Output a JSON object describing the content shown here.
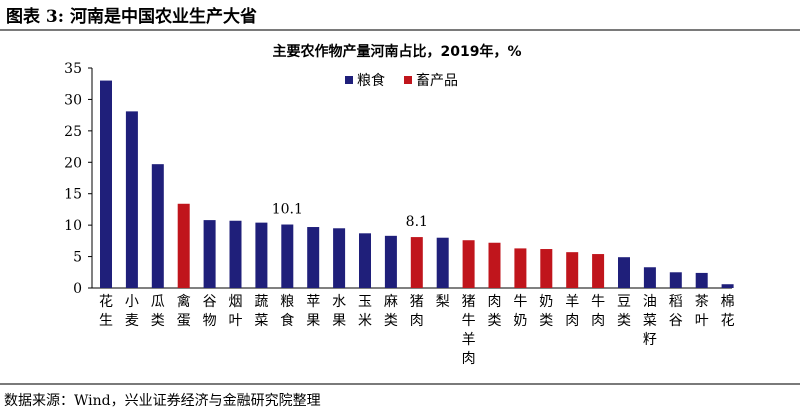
{
  "figure": {
    "title": "图表 3:  河南是中国农业生产大省",
    "source": "数据来源：Wind，兴业证券经济与金融研究院整理"
  },
  "chart_data": {
    "type": "bar",
    "title": "主要农作物产量河南占比，2019年，%",
    "ylim": [
      0,
      35
    ],
    "yticks": [
      0,
      5,
      10,
      15,
      20,
      25,
      30,
      35
    ],
    "grid": false,
    "legend_position": "top",
    "series": [
      {
        "name": "粮食",
        "color": "#1f1f7a"
      },
      {
        "name": "畜产品",
        "color": "#c0151c"
      }
    ],
    "categories": [
      "花生",
      "小麦",
      "瓜类",
      "禽蛋",
      "谷物",
      "烟叶",
      "蔬菜",
      "粮食",
      "苹果",
      "水果",
      "玉米",
      "麻类",
      "猪肉",
      "梨",
      "猪牛羊肉",
      "肉类",
      "牛奶",
      "奶类",
      "羊肉",
      "牛肉",
      "豆类",
      "油菜籽",
      "稻谷",
      "茶叶",
      "棉花"
    ],
    "values": [
      33.0,
      28.1,
      19.7,
      13.4,
      10.8,
      10.7,
      10.4,
      10.1,
      9.7,
      9.5,
      8.7,
      8.3,
      8.1,
      8.0,
      7.6,
      7.2,
      6.3,
      6.2,
      5.7,
      5.4,
      4.9,
      3.3,
      2.5,
      2.4,
      0.6
    ],
    "series_index": [
      0,
      0,
      0,
      1,
      0,
      0,
      0,
      0,
      0,
      0,
      0,
      0,
      1,
      0,
      1,
      1,
      1,
      1,
      1,
      1,
      0,
      0,
      0,
      0,
      0
    ],
    "data_labels": [
      {
        "index": 7,
        "text": "10.1"
      },
      {
        "index": 12,
        "text": "8.1"
      }
    ]
  }
}
